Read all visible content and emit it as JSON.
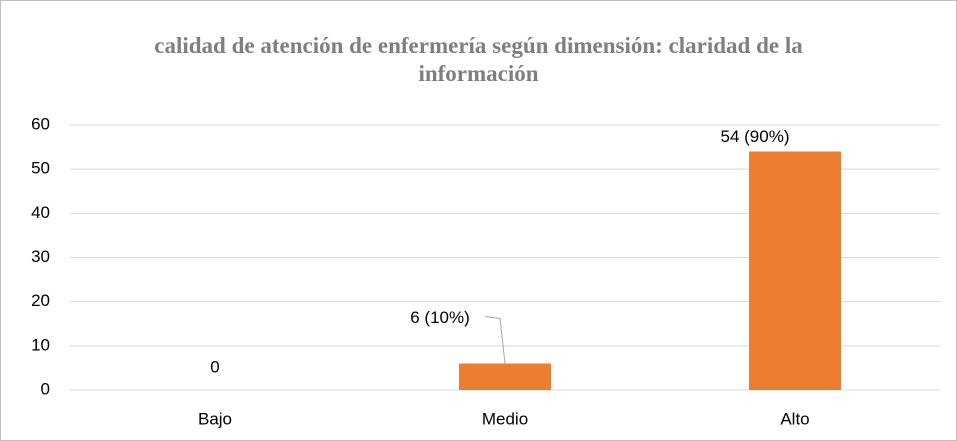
{
  "chart_data": {
    "type": "bar",
    "title": "calidad de atención de enfermería según dimensión: claridad de la información",
    "categories": [
      "Bajo",
      "Medio",
      "Alto"
    ],
    "values": [
      0,
      6,
      54
    ],
    "value_labels": [
      "0",
      "6 (10%)",
      "54 (90%)"
    ],
    "color": "#ed7d31",
    "ylim": [
      0,
      60
    ],
    "yticks": [
      0,
      10,
      20,
      30,
      40,
      50,
      60
    ],
    "grid": true
  }
}
